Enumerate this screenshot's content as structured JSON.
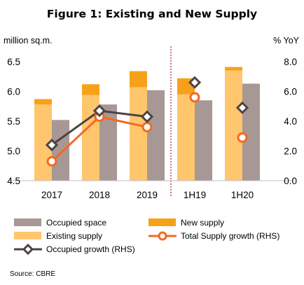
{
  "chart_data": {
    "type": "bar",
    "title": "Figure 1: Existing and New Supply",
    "left_axis_unit": "million sq.m.",
    "right_axis_unit": "% YoY",
    "categories": [
      "2017",
      "2018",
      "2019",
      "1H19",
      "1H20"
    ],
    "y_left_lim": [
      4.5,
      6.5
    ],
    "y_left_ticks": [
      "4.5",
      "5.0",
      "5.5",
      "6.0",
      "6.5"
    ],
    "y_right_lim": [
      0.0,
      8.0
    ],
    "y_right_ticks": [
      "0.0",
      "2.0",
      "4.0",
      "6.0",
      "8.0"
    ],
    "divider_after_category": "2019",
    "series": [
      {
        "name": "Existing supply",
        "kind": "bar-stack-base",
        "axis": "left",
        "color": "#ffc66e",
        "values": [
          5.78,
          5.94,
          6.07,
          5.95,
          6.35
        ]
      },
      {
        "name": "New supply",
        "kind": "bar-stack-top",
        "axis": "left",
        "color": "#f7a11a",
        "values": [
          0.09,
          0.18,
          0.27,
          0.27,
          0.06
        ]
      },
      {
        "name": "Occupied space",
        "kind": "bar",
        "axis": "left",
        "color": "#a79896",
        "values": [
          5.52,
          5.78,
          6.02,
          5.85,
          6.13
        ]
      },
      {
        "name": "Total Supply growth (RHS)",
        "kind": "line",
        "axis": "right",
        "color": "#f26a21",
        "values": [
          1.3,
          4.3,
          3.6,
          null,
          null
        ]
      },
      {
        "name": "Total Supply growth (RHS)",
        "kind": "points",
        "axis": "right",
        "color": "#f26a21",
        "values": [
          null,
          null,
          null,
          5.6,
          2.9
        ]
      },
      {
        "name": "Occupied growth (RHS)",
        "kind": "line",
        "axis": "right",
        "color": "#4d4341",
        "values": [
          2.4,
          4.7,
          4.3,
          null,
          null
        ]
      },
      {
        "name": "Occupied growth (RHS)",
        "kind": "points",
        "axis": "right",
        "color": "#4d4341",
        "values": [
          null,
          null,
          null,
          6.6,
          4.9
        ]
      }
    ],
    "legend": [
      {
        "label": "Occupied space",
        "symbol": "box",
        "color": "#a79896"
      },
      {
        "label": "New supply",
        "symbol": "box",
        "color": "#f7a11a"
      },
      {
        "label": "Existing supply",
        "symbol": "box",
        "color": "#ffc66e"
      },
      {
        "label": "Total Supply growth (RHS)",
        "symbol": "line-circle",
        "color": "#f26a21"
      },
      {
        "label": "Occupied growth (RHS)",
        "symbol": "line-diamond",
        "color": "#4d4341"
      }
    ],
    "legend_placement": "bottom",
    "grid": false
  },
  "source": "Source: CBRE"
}
